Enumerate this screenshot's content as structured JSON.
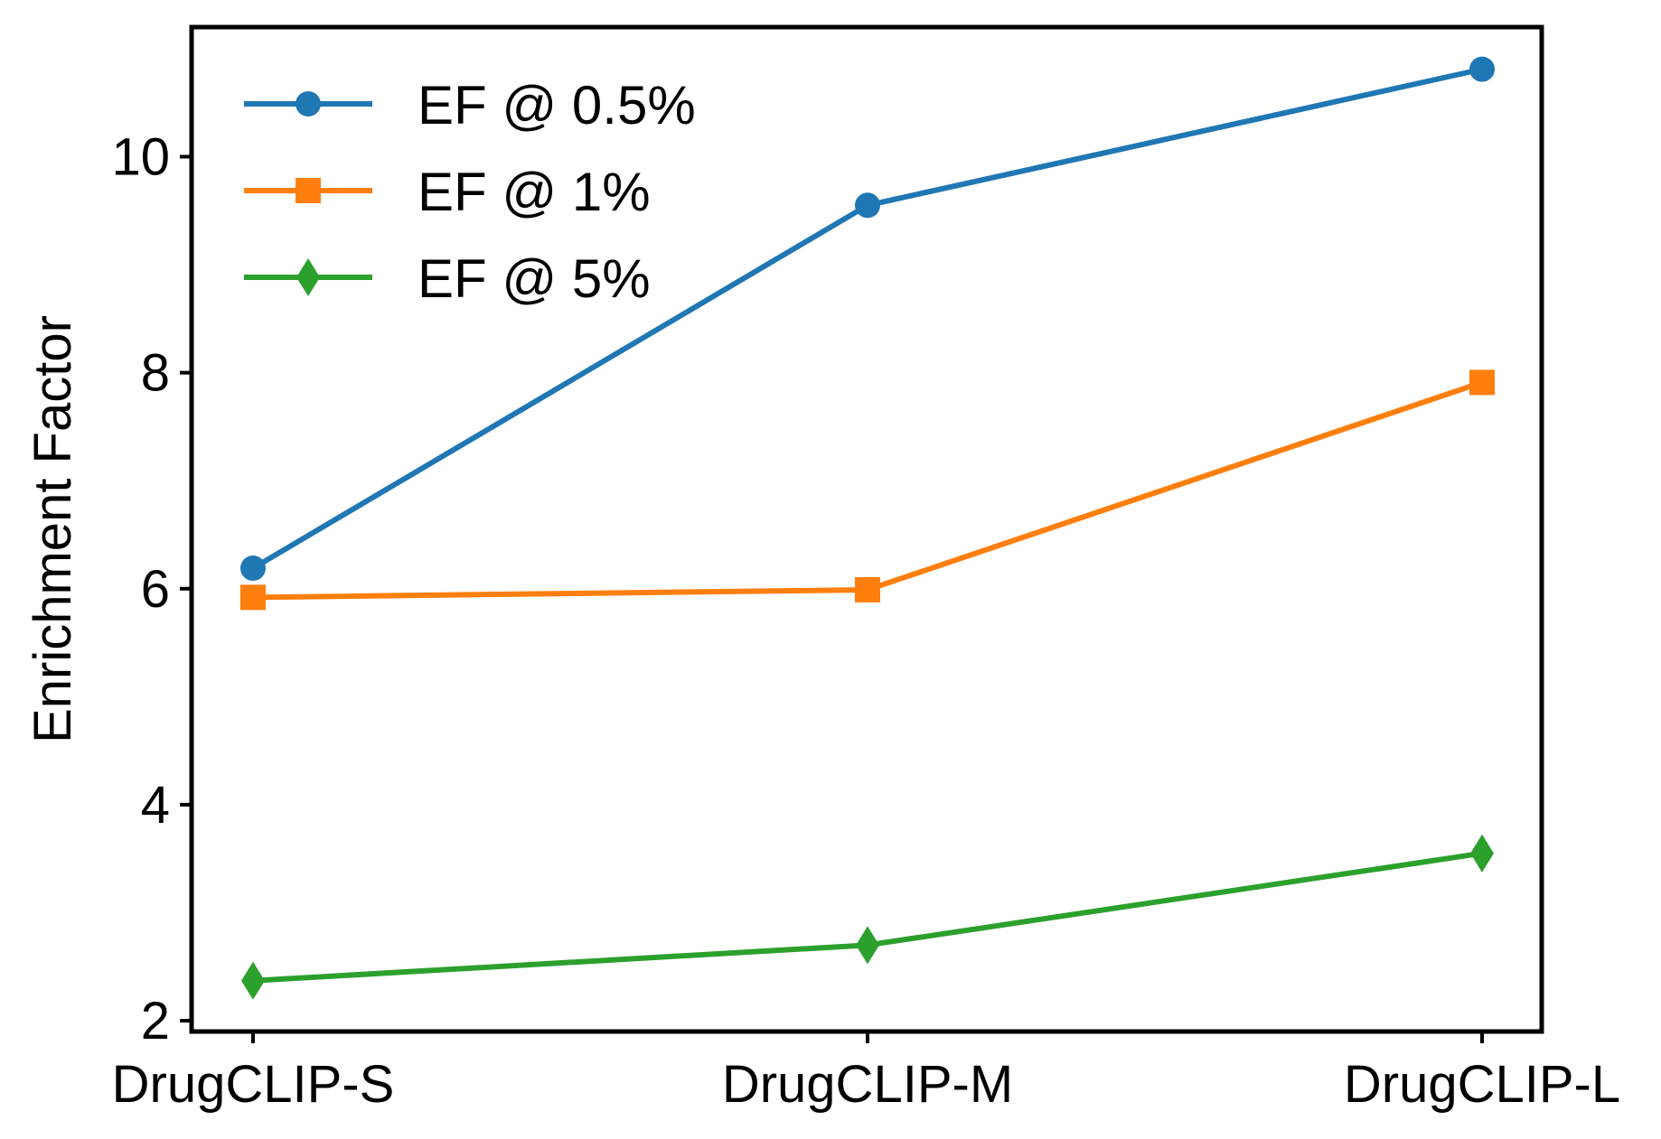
{
  "chart_data": {
    "type": "line",
    "title": "",
    "xlabel": "",
    "ylabel": "Enrichment Factor",
    "categories": [
      "DrugCLIP-S",
      "DrugCLIP-M",
      "DrugCLIP-L"
    ],
    "ylim": [
      1.9,
      11.2
    ],
    "yticks": [
      2,
      4,
      6,
      8,
      10
    ],
    "grid": false,
    "legend_position": "top-left",
    "series": [
      {
        "name": "EF @ 0.5%",
        "values": [
          6.19,
          9.55,
          10.81
        ],
        "color": "#1f77b4",
        "marker": "circle"
      },
      {
        "name": "EF @ 1%",
        "values": [
          5.92,
          5.99,
          7.91
        ],
        "color": "#ff7f0e",
        "marker": "square"
      },
      {
        "name": "EF @ 5%",
        "values": [
          2.37,
          2.7,
          3.55
        ],
        "color": "#2ca02c",
        "marker": "diamond"
      }
    ]
  }
}
